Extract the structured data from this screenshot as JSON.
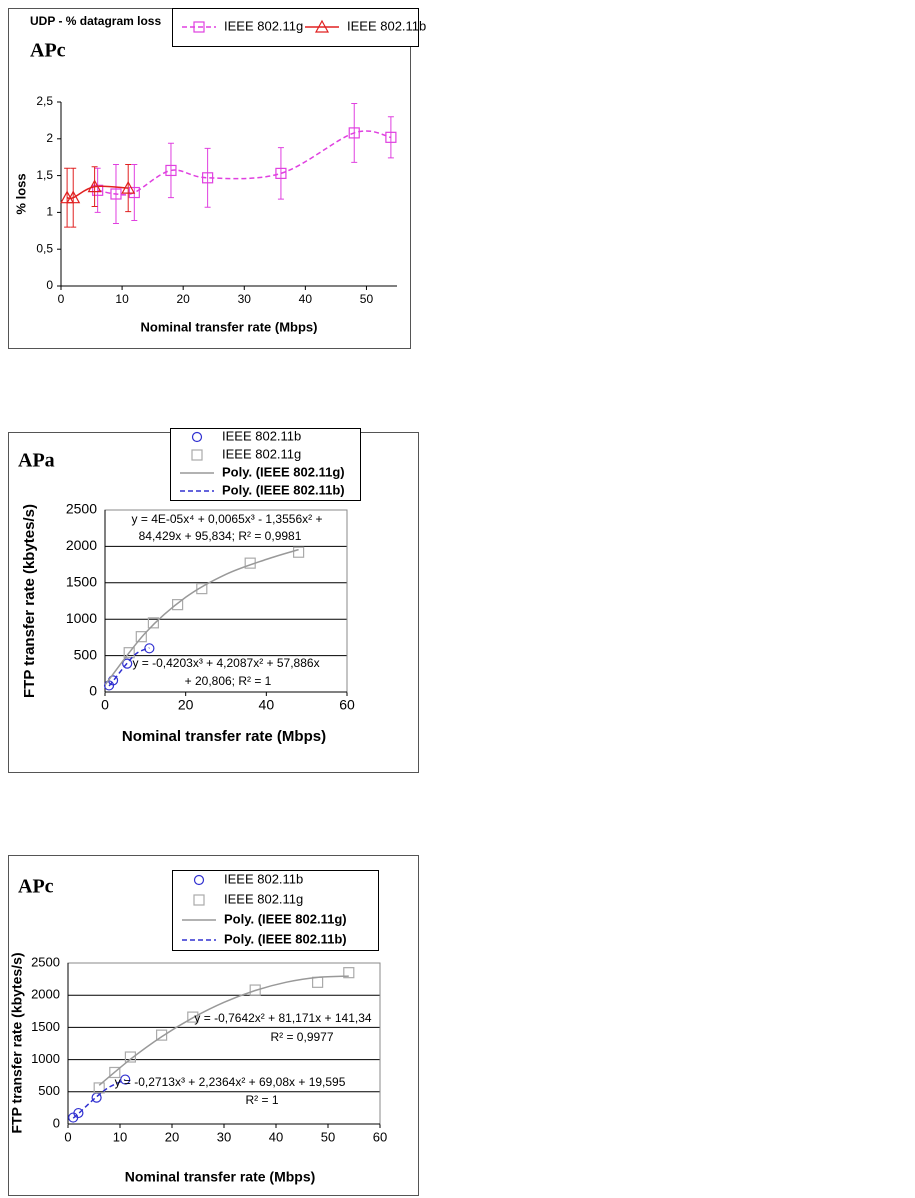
{
  "chart_data": [
    {
      "type": "line",
      "title": "UDP - % datagram loss",
      "label": "APc",
      "x_label": "Nominal transfer rate (Mbps)",
      "y_label": "% loss",
      "xlim": [
        0,
        55
      ],
      "xticks": [
        0,
        10,
        20,
        30,
        40,
        50
      ],
      "ylim": [
        0,
        2.5
      ],
      "yticks": [
        0,
        {
          "value": 0.5,
          "label": "0,5"
        },
        1,
        {
          "value": 1.5,
          "label": "1,5"
        },
        2,
        {
          "value": 2.5,
          "label": "2,5"
        }
      ],
      "grid": false,
      "series": [
        {
          "name": "IEEE 802.11g",
          "color": "#e040e0",
          "marker": "square",
          "line": "dashed",
          "x": [
            6,
            9,
            12,
            18,
            24,
            36,
            48,
            54
          ],
          "values": [
            1.3,
            1.25,
            1.27,
            1.57,
            1.47,
            1.53,
            2.08,
            2.02
          ],
          "errors": [
            0.3,
            0.4,
            0.38,
            0.37,
            0.4,
            0.35,
            0.4,
            0.28
          ]
        },
        {
          "name": "IEEE 802.11b",
          "color": "#e02020",
          "marker": "triangle",
          "line": "solid",
          "x": [
            1,
            2,
            5.5,
            11
          ],
          "values": [
            1.2,
            1.2,
            1.35,
            1.33
          ],
          "errors": [
            0.4,
            0.4,
            0.27,
            0.32
          ]
        }
      ]
    },
    {
      "type": "scatter",
      "label": "APa",
      "x_label": "Nominal transfer rate (Mbps)",
      "y_label": "FTP transfer rate (kbytes/s)",
      "xlim": [
        0,
        60
      ],
      "xticks": [
        0,
        20,
        40,
        60
      ],
      "ylim": [
        0,
        2500
      ],
      "yticks": [
        0,
        500,
        1000,
        1500,
        2000,
        2500
      ],
      "grid": true,
      "series": [
        {
          "name": "IEEE 802.11b",
          "color": "#3030d0",
          "marker": "circle",
          "x": [
            1,
            2,
            5.5,
            11
          ],
          "values": [
            90,
            160,
            390,
            600
          ]
        },
        {
          "name": "IEEE 802.11g",
          "color": "#aaaaaa",
          "marker": "square",
          "x": [
            6,
            9,
            12,
            18,
            24,
            36,
            48
          ],
          "values": [
            540,
            760,
            950,
            1200,
            1420,
            1770,
            1920
          ]
        },
        {
          "name": "Poly. (IEEE 802.11g)",
          "color": "#999999",
          "line": "solid",
          "x": [
            0,
            10,
            20,
            30,
            40,
            48
          ],
          "values": [
            96,
            811,
            1301,
            1617,
            1822,
            1956
          ]
        },
        {
          "name": "Poly. (IEEE 802.11b)",
          "color": "#3030d0",
          "line": "dashed",
          "x": [
            1,
            2,
            5.5,
            8,
            11
          ],
          "values": [
            83,
            150,
            397,
            538,
            607
          ]
        }
      ],
      "annotations": [
        "y = 4E-05x⁴ + 0,0065x³ - 1,3556x² +",
        "84,429x + 95,834; R² = 0,9981",
        "y = -0,4203x³ + 4,2087x² + 57,886x",
        "+ 20,806; R² = 1"
      ]
    },
    {
      "type": "scatter",
      "label": "APc",
      "x_label": "Nominal transfer rate (Mbps)",
      "y_label": "FTP transfer rate (kbytes/s)",
      "xlim": [
        0,
        60
      ],
      "xticks": [
        0,
        10,
        20,
        30,
        40,
        50,
        60
      ],
      "ylim": [
        0,
        2500
      ],
      "yticks": [
        0,
        500,
        1000,
        1500,
        2000,
        2500
      ],
      "grid": true,
      "series": [
        {
          "name": "IEEE 802.11b",
          "color": "#3030d0",
          "marker": "circle",
          "x": [
            1,
            2,
            5.5,
            11
          ],
          "values": [
            100,
            170,
            410,
            690
          ]
        },
        {
          "name": "IEEE 802.11g",
          "color": "#aaaaaa",
          "marker": "square",
          "x": [
            6,
            9,
            12,
            18,
            24,
            36,
            48,
            54
          ],
          "values": [
            560,
            800,
            1040,
            1380,
            1660,
            2080,
            2200,
            2350
          ]
        },
        {
          "name": "Poly. (IEEE 802.11g)",
          "color": "#999999",
          "line": "solid",
          "x": [
            6,
            12,
            18,
            24,
            30,
            36,
            42,
            48,
            54
          ],
          "values": [
            601,
            1005,
            1355,
            1649,
            1889,
            2073,
            2202,
            2277,
            2296
          ]
        },
        {
          "name": "Poly. (IEEE 802.11b)",
          "color": "#3030d0",
          "line": "dashed",
          "x": [
            1,
            2,
            4,
            6,
            8,
            11
          ],
          "values": [
            91,
            160,
            314,
            456,
            576,
            689
          ]
        }
      ],
      "annotations": [
        "y = -0,7642x² + 81,171x + 141,34",
        "R² = 0,9977",
        "y = -0,2713x³ + 2,2364x² + 69,08x + 19,595",
        "R² = 1"
      ]
    }
  ]
}
